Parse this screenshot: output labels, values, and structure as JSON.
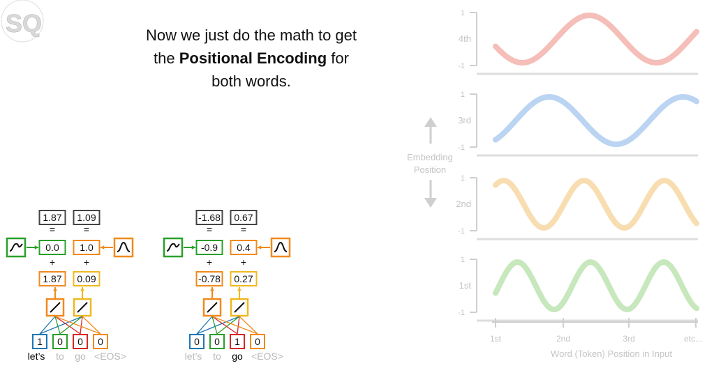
{
  "logo": {
    "text": "SQ"
  },
  "caption": {
    "line1": "Now we just do the math to get",
    "line2_pre": "the ",
    "line2_bold": "Positional Encoding",
    "line2_post": " for",
    "line3": "both words."
  },
  "left_example": {
    "results": [
      "1.87",
      "1.09"
    ],
    "equals": "=",
    "plus": "+",
    "position_values": [
      "0.0",
      "1.0"
    ],
    "embedding_values": [
      "1.87",
      "0.09"
    ],
    "one_hot": [
      "1",
      "0",
      "0",
      "0"
    ],
    "tokens": [
      "let’s",
      "to",
      "go",
      "<EOS>"
    ],
    "active_token": 0
  },
  "right_example": {
    "results": [
      "-1.68",
      "0.67"
    ],
    "equals": "=",
    "plus": "+",
    "position_values": [
      "-0.9",
      "0.4"
    ],
    "embedding_values": [
      "-0.78",
      "0.27"
    ],
    "one_hot": [
      "0",
      "0",
      "1",
      "0"
    ],
    "tokens": [
      "let’s",
      "to",
      "go",
      "<EOS>"
    ],
    "active_token": 2
  },
  "chart": {
    "embedding_position_label": [
      "Embedding",
      "Position"
    ],
    "x_axis_label": "Word (Token) Position in Input",
    "x_ticks": [
      "1st",
      "2nd",
      "3rd",
      "etc..."
    ],
    "y_tick_top": "1",
    "y_tick_bottom": "-1",
    "panels": [
      {
        "label": "4th",
        "color": "#f3b3ad"
      },
      {
        "label": "3rd",
        "color": "#aecdf0"
      },
      {
        "label": "2nd",
        "color": "#f7d7a2"
      },
      {
        "label": "1st",
        "color": "#bde3b0"
      }
    ]
  },
  "colors": {
    "green": "#2aa02a",
    "orange": "#f08a1c",
    "yellow": "#f0b820",
    "blue": "#1f77b4",
    "red": "#d62728",
    "gray_box": "#444444",
    "faded_text": "#b9b9b9"
  }
}
